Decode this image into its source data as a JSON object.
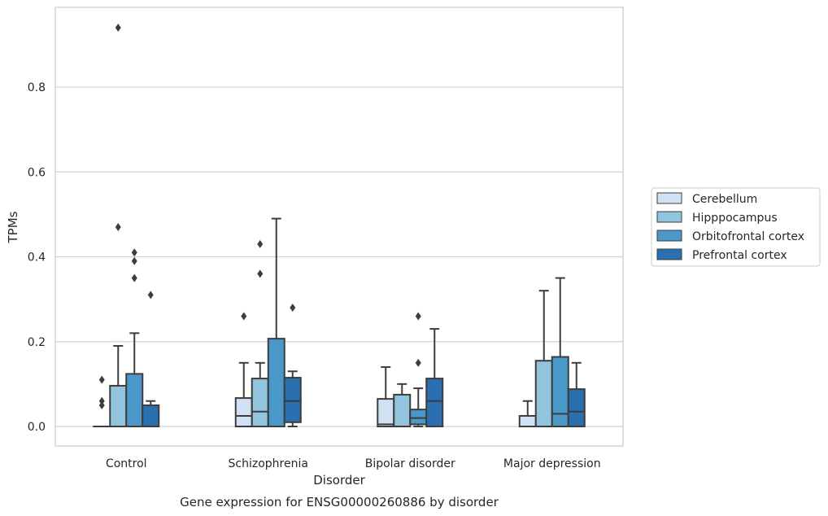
{
  "chart_data": {
    "type": "box",
    "title": "",
    "caption": "Gene expression for ENSG00000260886 by disorder",
    "xlabel": "Disorder",
    "ylabel": "TPMs",
    "ylim": [
      -0.045,
      0.985
    ],
    "yticks": [
      0.0,
      0.2,
      0.4,
      0.6,
      0.8
    ],
    "ytick_labels": [
      "0.0",
      "0.2",
      "0.4",
      "0.6",
      "0.8"
    ],
    "grid": "horizontal",
    "legend_position": "right",
    "categories": [
      "Control",
      "Schizophrenia",
      "Bipolar disorder",
      "Major depression"
    ],
    "series": [
      {
        "name": "Cerebellum",
        "color": "#cfe1f2",
        "boxes": [
          {
            "min": 0.0,
            "q1": 0.0,
            "median": 0.0,
            "q3": 0.0,
            "max": 0.0,
            "outliers": [
              0.11,
              0.06,
              0.05
            ]
          },
          {
            "min": 0.0,
            "q1": 0.0,
            "median": 0.025,
            "q3": 0.067,
            "max": 0.15,
            "outliers": [
              0.26
            ]
          },
          {
            "min": 0.0,
            "q1": 0.0,
            "median": 0.005,
            "q3": 0.065,
            "max": 0.14,
            "outliers": []
          },
          {
            "min": 0.0,
            "q1": 0.0,
            "median": 0.0,
            "q3": 0.025,
            "max": 0.06,
            "outliers": []
          }
        ]
      },
      {
        "name": "Hipppocampus",
        "color": "#93c4de",
        "boxes": [
          {
            "min": 0.0,
            "q1": 0.0,
            "median": 0.0,
            "q3": 0.096,
            "max": 0.19,
            "outliers": [
              0.47,
              0.94
            ]
          },
          {
            "min": 0.0,
            "q1": 0.0,
            "median": 0.035,
            "q3": 0.113,
            "max": 0.15,
            "outliers": [
              0.36,
              0.43
            ]
          },
          {
            "min": 0.0,
            "q1": 0.0,
            "median": 0.0,
            "q3": 0.075,
            "max": 0.1,
            "outliers": []
          },
          {
            "min": 0.0,
            "q1": 0.0,
            "median": 0.0,
            "q3": 0.155,
            "max": 0.32,
            "outliers": []
          }
        ]
      },
      {
        "name": "Orbitofrontal cortex",
        "color": "#4a98c9",
        "boxes": [
          {
            "min": 0.0,
            "q1": 0.0,
            "median": 0.0,
            "q3": 0.124,
            "max": 0.22,
            "outliers": [
              0.35,
              0.39,
              0.41
            ]
          },
          {
            "min": 0.0,
            "q1": 0.0,
            "median": 0.0,
            "q3": 0.207,
            "max": 0.49,
            "outliers": []
          },
          {
            "min": 0.0,
            "q1": 0.005,
            "median": 0.02,
            "q3": 0.04,
            "max": 0.09,
            "outliers": [
              0.15,
              0.26
            ]
          },
          {
            "min": 0.0,
            "q1": 0.0,
            "median": 0.03,
            "q3": 0.164,
            "max": 0.35,
            "outliers": []
          }
        ]
      },
      {
        "name": "Prefrontal cortex",
        "color": "#2a6fb0",
        "boxes": [
          {
            "min": 0.0,
            "q1": 0.0,
            "median": 0.0,
            "q3": 0.05,
            "max": 0.06,
            "outliers": [
              0.31
            ]
          },
          {
            "min": 0.0,
            "q1": 0.01,
            "median": 0.06,
            "q3": 0.115,
            "max": 0.13,
            "outliers": [
              0.28
            ]
          },
          {
            "min": 0.0,
            "q1": 0.0,
            "median": 0.06,
            "q3": 0.113,
            "max": 0.23,
            "outliers": []
          },
          {
            "min": 0.0,
            "q1": 0.0,
            "median": 0.035,
            "q3": 0.088,
            "max": 0.15,
            "outliers": []
          }
        ]
      }
    ]
  }
}
